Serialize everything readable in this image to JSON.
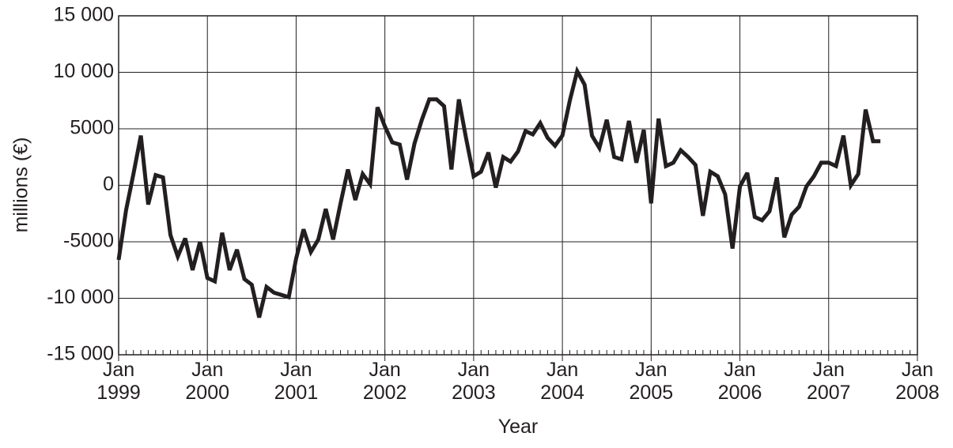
{
  "chart_data": {
    "type": "line",
    "x_label": "Year",
    "y_label": "millions (€)",
    "grid": true,
    "x": [
      "1999-01",
      "1999-02",
      "1999-03",
      "1999-04",
      "1999-05",
      "1999-06",
      "1999-07",
      "1999-08",
      "1999-09",
      "1999-10",
      "1999-11",
      "1999-12",
      "2000-01",
      "2000-02",
      "2000-03",
      "2000-04",
      "2000-05",
      "2000-06",
      "2000-07",
      "2000-08",
      "2000-09",
      "2000-10",
      "2000-11",
      "2000-12",
      "2001-01",
      "2001-02",
      "2001-03",
      "2001-04",
      "2001-05",
      "2001-06",
      "2001-07",
      "2001-08",
      "2001-09",
      "2001-10",
      "2001-11",
      "2001-12",
      "2002-01",
      "2002-02",
      "2002-03",
      "2002-04",
      "2002-05",
      "2002-06",
      "2002-07",
      "2002-08",
      "2002-09",
      "2002-10",
      "2002-11",
      "2002-12",
      "2003-01",
      "2003-02",
      "2003-03",
      "2003-04",
      "2003-05",
      "2003-06",
      "2003-07",
      "2003-08",
      "2003-09",
      "2003-10",
      "2003-11",
      "2003-12",
      "2004-01",
      "2004-02",
      "2004-03",
      "2004-04",
      "2004-05",
      "2004-06",
      "2004-07",
      "2004-08",
      "2004-09",
      "2004-10",
      "2004-11",
      "2004-12",
      "2005-01",
      "2005-02",
      "2005-03",
      "2005-04",
      "2005-05",
      "2005-06",
      "2005-07",
      "2005-08",
      "2005-09",
      "2005-10",
      "2005-11",
      "2005-12",
      "2006-01",
      "2006-02",
      "2006-03",
      "2006-04",
      "2006-05",
      "2006-06",
      "2006-07",
      "2006-08",
      "2006-09",
      "2006-10",
      "2006-11",
      "2006-12",
      "2007-01",
      "2007-02",
      "2007-03",
      "2007-04",
      "2007-05",
      "2007-06",
      "2007-07",
      "2007-08"
    ],
    "series": [
      {
        "name": "millions (€)",
        "color": "#231f20",
        "values": [
          -6600,
          -2200,
          1000,
          4400,
          -1700,
          900,
          700,
          -4400,
          -6300,
          -4700,
          -7500,
          -5000,
          -8200,
          -8500,
          -4200,
          -7500,
          -5700,
          -8300,
          -8800,
          -11700,
          -9000,
          -9500,
          -9700,
          -9900,
          -6500,
          -3900,
          -5900,
          -4800,
          -2100,
          -4800,
          -1600,
          1400,
          -1300,
          1000,
          100,
          6900,
          5200,
          3800,
          3600,
          500,
          3700,
          5800,
          7600,
          7600,
          7000,
          1400,
          7600,
          4100,
          800,
          1200,
          2900,
          -200,
          2500,
          2100,
          3000,
          4800,
          4500,
          5500,
          4200,
          3500,
          4400,
          7500,
          10100,
          8900,
          4400,
          3300,
          5800,
          2500,
          2300,
          5700,
          2000,
          4900,
          -1600,
          5900,
          1700,
          2000,
          3100,
          2500,
          1800,
          -2700,
          1200,
          800,
          -800,
          -5600,
          -100,
          1100,
          -2800,
          -3100,
          -2300,
          700,
          -4600,
          -2600,
          -1900,
          -100,
          800,
          2000,
          2000,
          1700,
          4400,
          0,
          1000,
          6700,
          3900,
          3900
        ]
      }
    ],
    "xlim": [
      "1999-01",
      "2008-01"
    ],
    "xticks": [
      {
        "value": "1999-01",
        "label": "Jan 1999"
      },
      {
        "value": "2000-01",
        "label": "Jan 2000"
      },
      {
        "value": "2001-01",
        "label": "Jan 2001"
      },
      {
        "value": "2002-01",
        "label": "Jan 2002"
      },
      {
        "value": "2003-01",
        "label": "Jan 2003"
      },
      {
        "value": "2004-01",
        "label": "Jan 2004"
      },
      {
        "value": "2005-01",
        "label": "Jan 2005"
      },
      {
        "value": "2006-01",
        "label": "Jan 2006"
      },
      {
        "value": "2007-01",
        "label": "Jan 2007"
      },
      {
        "value": "2008-01",
        "label": "Jan 2008"
      }
    ],
    "ylim": [
      -15000,
      15000
    ],
    "yticks": [
      {
        "value": -15000,
        "label": "-15 000"
      },
      {
        "value": -10000,
        "label": "-10 000"
      },
      -5000,
      0,
      5000,
      {
        "value": 10000,
        "label": "10 000"
      },
      {
        "value": 15000,
        "label": "15 000"
      }
    ]
  }
}
